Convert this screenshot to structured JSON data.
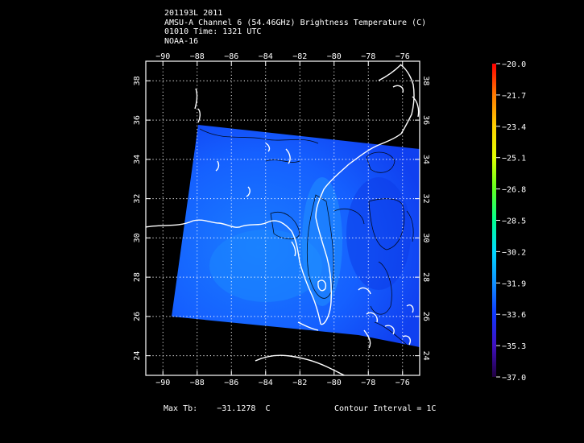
{
  "header": {
    "line1": "201193L 2011",
    "line2": "AMSU-A Channel 6 (54.46GHz) Brightness Temperature (C)",
    "line3": "01010 Time: 1321 UTC",
    "line4": "NOAA-16"
  },
  "map": {
    "lon_ticks": [
      "−90",
      "−88",
      "−86",
      "−84",
      "−82",
      "−80",
      "−78",
      "−76"
    ],
    "lat_ticks": [
      "24",
      "26",
      "28",
      "30",
      "32",
      "34",
      "36",
      "38"
    ],
    "lon_range": [
      -91,
      -75
    ],
    "lat_range": [
      23,
      39
    ]
  },
  "colorbar": {
    "labels": [
      "−20.0",
      "−21.7",
      "−23.4",
      "−25.1",
      "−26.8",
      "−28.5",
      "−30.2",
      "−31.9",
      "−33.6",
      "−35.3",
      "−37.0"
    ],
    "colors": [
      "#ff0000",
      "#ff7a00",
      "#ffd000",
      "#e0ff00",
      "#60ff20",
      "#00ff90",
      "#00d8ff",
      "#1090ff",
      "#1038ff",
      "#4010c0",
      "#200040"
    ]
  },
  "footer": {
    "max_tb_label": "Max Tb:",
    "max_tb_value": "−31.1278",
    "max_tb_unit": "C",
    "contour_interval": "Contour Interval = 1C"
  }
}
